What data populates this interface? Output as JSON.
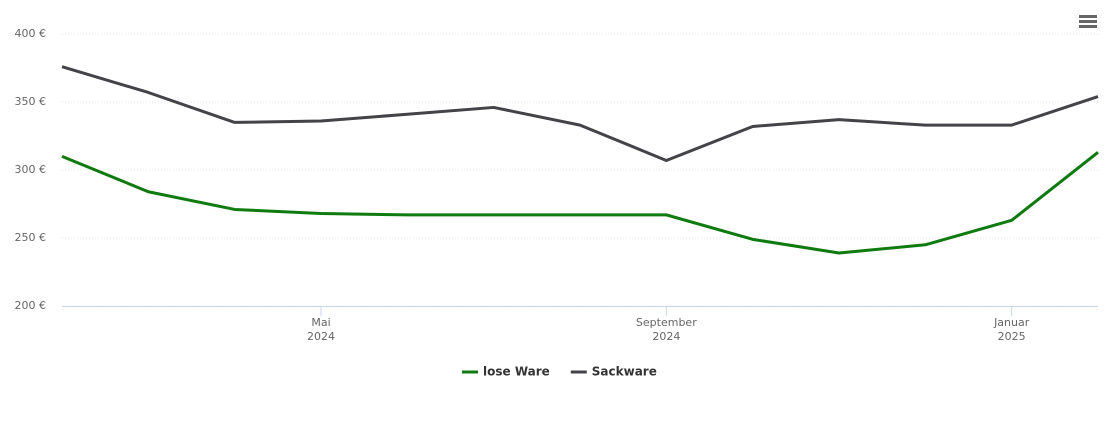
{
  "chart_data": {
    "type": "line",
    "x": [
      "2024-02",
      "2024-03",
      "2024-04",
      "2024-05",
      "2024-06",
      "2024-07",
      "2024-08",
      "2024-09",
      "2024-10",
      "2024-11",
      "2024-12",
      "2025-01",
      "2025-02"
    ],
    "xlim": [
      "2024-02",
      "2025-02"
    ],
    "xticks": [
      {
        "value": "2024-05",
        "label": "Mai 2024"
      },
      {
        "value": "2024-09",
        "label": "September 2024"
      },
      {
        "value": "2025-01",
        "label": "Januar 2025"
      }
    ],
    "ylim": [
      200,
      400
    ],
    "yticks": [
      {
        "value": 200,
        "label": "200 €"
      },
      {
        "value": 250,
        "label": "250 €"
      },
      {
        "value": 300,
        "label": "300 €"
      },
      {
        "value": 350,
        "label": "350 €"
      },
      {
        "value": 400,
        "label": "400 €"
      }
    ],
    "grid": true,
    "series": [
      {
        "name": "lose Ware",
        "color": "#0f7a0f",
        "values": [
          310,
          284,
          271,
          268,
          267,
          267,
          267,
          267,
          249,
          239,
          245,
          263,
          313
        ]
      },
      {
        "name": "Sackware",
        "color": "#434348",
        "values": [
          376,
          357,
          335,
          336,
          341,
          346,
          333,
          307,
          332,
          337,
          333,
          333,
          354
        ]
      }
    ]
  }
}
